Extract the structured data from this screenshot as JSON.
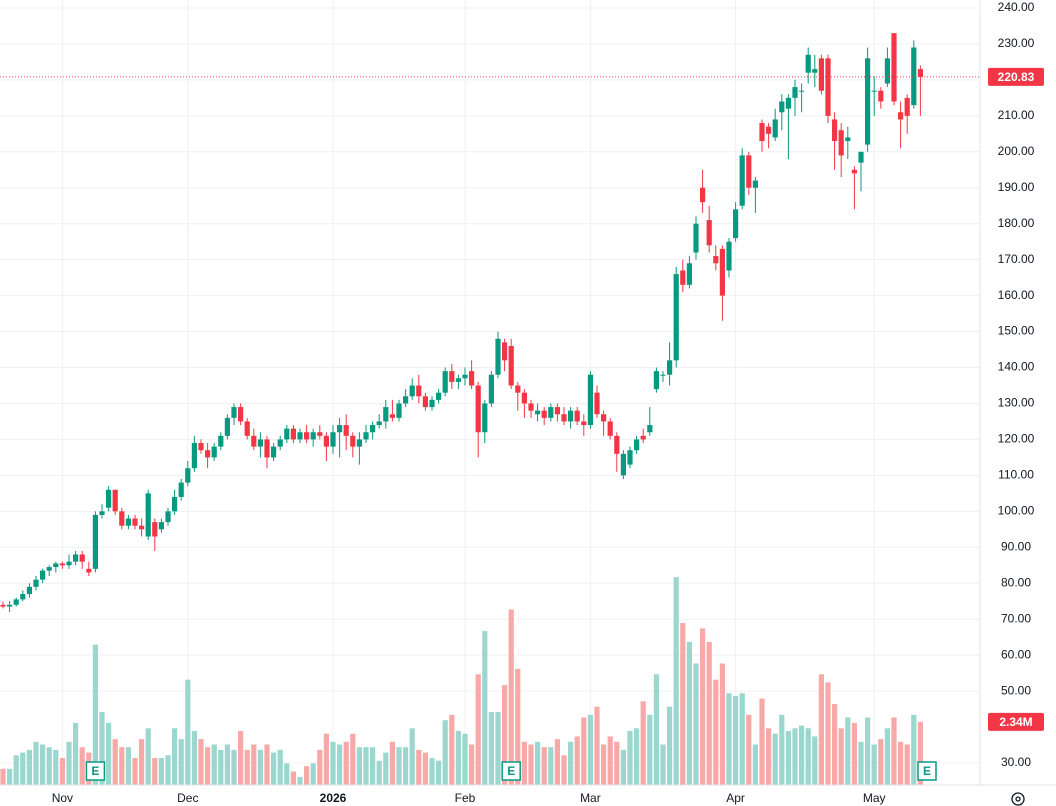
{
  "chart_data": {
    "type": "candlestick",
    "colors": {
      "up": "#089981",
      "down": "#f23645",
      "up_volume": "#9bd6cf",
      "down_volume": "#f7a9a7"
    },
    "candles": [
      [
        74,
        75,
        73,
        73.5,
        0.6
      ],
      [
        73.5,
        75,
        72,
        74,
        0.6
      ],
      [
        74,
        76,
        73.5,
        75.5,
        1.1
      ],
      [
        75.5,
        78,
        75,
        77,
        1.2
      ],
      [
        77,
        80,
        76,
        79,
        1.3
      ],
      [
        79,
        82,
        78,
        81,
        1.6
      ],
      [
        81,
        84,
        80,
        83.5,
        1.5
      ],
      [
        83.5,
        85,
        82,
        84.5,
        1.4
      ],
      [
        84.5,
        86,
        83,
        85.5,
        1.3
      ],
      [
        85.5,
        86,
        84,
        85,
        1.0
      ],
      [
        85,
        88,
        84,
        86,
        1.6
      ],
      [
        86,
        89,
        85,
        88,
        2.3
      ],
      [
        88,
        89,
        84,
        86,
        1.4
      ],
      [
        84,
        86,
        82,
        83,
        1.2
      ],
      [
        84,
        100,
        83,
        99,
        5.2
      ],
      [
        99,
        102,
        98,
        100,
        2.7
      ],
      [
        101,
        107,
        100,
        106,
        2.3
      ],
      [
        106,
        106,
        99,
        100,
        1.7
      ],
      [
        100,
        101,
        95,
        96,
        1.4
      ],
      [
        96,
        99,
        95,
        98,
        1.4
      ],
      [
        98,
        99,
        95,
        96,
        1.0
      ],
      [
        96,
        98,
        93,
        95,
        1.7
      ],
      [
        93,
        106,
        92,
        105,
        2.1
      ],
      [
        97,
        98,
        89,
        93,
        1.0
      ],
      [
        95,
        98,
        94,
        97,
        1.0
      ],
      [
        97,
        101,
        96,
        100,
        1.1
      ],
      [
        100,
        106,
        99,
        104,
        2.1
      ],
      [
        104,
        109,
        103,
        108,
        1.7
      ],
      [
        108,
        114,
        107,
        112,
        3.9
      ],
      [
        112,
        121,
        111,
        119,
        2.0
      ],
      [
        119,
        120,
        116,
        117,
        1.7
      ],
      [
        117,
        119,
        112,
        115,
        1.4
      ],
      [
        115,
        119,
        114,
        118,
        1.5
      ],
      [
        118,
        122,
        117,
        121,
        1.3
      ],
      [
        121,
        127,
        120,
        126,
        1.5
      ],
      [
        126,
        130,
        124,
        129,
        1.3
      ],
      [
        129,
        130,
        124,
        125,
        2.0
      ],
      [
        125,
        126,
        120,
        121,
        1.3
      ],
      [
        121,
        123,
        117,
        118,
        1.5
      ],
      [
        118,
        122,
        115,
        120,
        1.3
      ],
      [
        120,
        121,
        112,
        115,
        1.5
      ],
      [
        115,
        119,
        114,
        118,
        1.2
      ],
      [
        118,
        121,
        117,
        120,
        1.3
      ],
      [
        120,
        124,
        119,
        123,
        0.8
      ],
      [
        123,
        124,
        119,
        120,
        0.5
      ],
      [
        120,
        123,
        119,
        122,
        0.3
      ],
      [
        122,
        124,
        119,
        120,
        0.7
      ],
      [
        120,
        123,
        118,
        122,
        0.8
      ],
      [
        122,
        124,
        120,
        121,
        1.3
      ],
      [
        121,
        122,
        114,
        118,
        1.9
      ],
      [
        118,
        124,
        116,
        122,
        1.6
      ],
      [
        122,
        126,
        115,
        124,
        1.5
      ],
      [
        124,
        127,
        117,
        121,
        1.6
      ],
      [
        121,
        122,
        115,
        118,
        1.9
      ],
      [
        118,
        122,
        113,
        120,
        1.4
      ],
      [
        120,
        124,
        119,
        122,
        1.4
      ],
      [
        122,
        125,
        120,
        124,
        1.4
      ],
      [
        124,
        127,
        123,
        125,
        0.9
      ],
      [
        125,
        131,
        123,
        129,
        1.2
      ],
      [
        127,
        131,
        125,
        126,
        1.6
      ],
      [
        126,
        131,
        125,
        130,
        1.4
      ],
      [
        130,
        134,
        129,
        132,
        1.4
      ],
      [
        132,
        137,
        131,
        135,
        2.1
      ],
      [
        135,
        138,
        130,
        132,
        1.3
      ],
      [
        132,
        133,
        128,
        129,
        1.2
      ],
      [
        129,
        132,
        128,
        131,
        1.0
      ],
      [
        131,
        134,
        130,
        133,
        0.9
      ],
      [
        133,
        140,
        132,
        139,
        2.4
      ],
      [
        139,
        141,
        134,
        136,
        2.6
      ],
      [
        136,
        138,
        134,
        137,
        2.0
      ],
      [
        137,
        140,
        135,
        138,
        1.9
      ],
      [
        139,
        142,
        134,
        135,
        1.5
      ],
      [
        135,
        136,
        115,
        122,
        4.1
      ],
      [
        122,
        131,
        119,
        130,
        5.7
      ],
      [
        130,
        139,
        129,
        138,
        2.7
      ],
      [
        138,
        150,
        137,
        148,
        2.7
      ],
      [
        147,
        148,
        139,
        142,
        3.7
      ],
      [
        146,
        148,
        134,
        135,
        6.5
      ],
      [
        135,
        136,
        128,
        133,
        4.3
      ],
      [
        133,
        134,
        126,
        130,
        1.6
      ],
      [
        130,
        131,
        126,
        128,
        1.5
      ],
      [
        127,
        130,
        125,
        128,
        1.6
      ],
      [
        128,
        129,
        124,
        126,
        1.4
      ],
      [
        126,
        130,
        125,
        129,
        1.4
      ],
      [
        129,
        130,
        125,
        127,
        1.7
      ],
      [
        127,
        129,
        124,
        125,
        1.1
      ],
      [
        125,
        129,
        123,
        128,
        1.6
      ],
      [
        128,
        129,
        124,
        125,
        1.8
      ],
      [
        125,
        127,
        121,
        124,
        2.5
      ],
      [
        124,
        139,
        123,
        138,
        2.6
      ],
      [
        133,
        135,
        126,
        127,
        2.9
      ],
      [
        127,
        128,
        121,
        125,
        1.5
      ],
      [
        125,
        126,
        120,
        121,
        1.8
      ],
      [
        121,
        122,
        111,
        116,
        1.6
      ],
      [
        110,
        117,
        109,
        116,
        1.3
      ],
      [
        113,
        118,
        112,
        117,
        2.0
      ],
      [
        117,
        121,
        116,
        120,
        2.1
      ],
      [
        121,
        123,
        119,
        120,
        3.1
      ],
      [
        122,
        129,
        121,
        124,
        2.6
      ],
      [
        134,
        140,
        133,
        139,
        4.1
      ],
      [
        138,
        139,
        136,
        138,
        1.5
      ],
      [
        138,
        147,
        135,
        142,
        2.9
      ],
      [
        142,
        168,
        140,
        166,
        7.7
      ],
      [
        167,
        170,
        161,
        163,
        6.0
      ],
      [
        163,
        171,
        162,
        169,
        5.3
      ],
      [
        172,
        182,
        170,
        180,
        4.5
      ],
      [
        190,
        195,
        183,
        186,
        5.8
      ],
      [
        181,
        185,
        172,
        174,
        5.3
      ],
      [
        171,
        174,
        167,
        169,
        3.9
      ],
      [
        173,
        174,
        153,
        160,
        4.5
      ],
      [
        167,
        176,
        165,
        175,
        3.4
      ],
      [
        176,
        186,
        175,
        184,
        3.3
      ],
      [
        185,
        201,
        184,
        199,
        3.4
      ],
      [
        199,
        200,
        188,
        190,
        2.6
      ],
      [
        190,
        193,
        183,
        192,
        1.5
      ],
      [
        208,
        209,
        200,
        203,
        3.2
      ],
      [
        207,
        208,
        201,
        205,
        2.1
      ],
      [
        204,
        212,
        203,
        209,
        1.9
      ],
      [
        211,
        216,
        206,
        214,
        2.6
      ],
      [
        212,
        216,
        198,
        215,
        2.0
      ],
      [
        215,
        220,
        210,
        218,
        2.1
      ],
      [
        217,
        219,
        211,
        217,
        2.2
      ],
      [
        222,
        229,
        219,
        227,
        2.1
      ],
      [
        222,
        227,
        218,
        223,
        1.8
      ],
      [
        226,
        227,
        216,
        217,
        4.1
      ],
      [
        226,
        227,
        208,
        210,
        3.8
      ],
      [
        209,
        211,
        195,
        203,
        3.0
      ],
      [
        206,
        208,
        193,
        199,
        2.1
      ],
      [
        203,
        207,
        198,
        204,
        2.5
      ],
      [
        195,
        196,
        184,
        194,
        2.3
      ],
      [
        197,
        200,
        189,
        200,
        1.6
      ],
      [
        202,
        229,
        200,
        226,
        2.5
      ],
      [
        217,
        221,
        210,
        217,
        1.5
      ],
      [
        217,
        218,
        212,
        214,
        1.7
      ],
      [
        219,
        229,
        218,
        226,
        2.1
      ],
      [
        233,
        233,
        213,
        214,
        2.5
      ],
      [
        211,
        214,
        201,
        209,
        1.6
      ],
      [
        215,
        216,
        205,
        210,
        1.5
      ],
      [
        213,
        231,
        212,
        229,
        2.6
      ],
      [
        223,
        224,
        210,
        220.83,
        2.34
      ]
    ],
    "xticks": [
      {
        "value": 9,
        "label": "Nov"
      },
      {
        "value": 28,
        "label": "Dec"
      },
      {
        "value": 50,
        "label": "2026"
      },
      {
        "value": 70,
        "label": "Feb"
      },
      {
        "value": 89,
        "label": "Mar"
      },
      {
        "value": 111,
        "label": "Apr"
      },
      {
        "value": 132,
        "label": "May"
      }
    ],
    "ylim": [
      30,
      240
    ],
    "yticks": [
      {
        "value": 30,
        "label": "30.00"
      },
      {
        "value": 50,
        "label": "50.00"
      },
      {
        "value": 60,
        "label": "60.00"
      },
      {
        "value": 70,
        "label": "70.00"
      },
      {
        "value": 80,
        "label": "80.00"
      },
      {
        "value": 90,
        "label": "90.00"
      },
      {
        "value": 100,
        "label": "100.00"
      },
      {
        "value": 110,
        "label": "110.00"
      },
      {
        "value": 120,
        "label": "120.00"
      },
      {
        "value": 130,
        "label": "130.00"
      },
      {
        "value": 140,
        "label": "140.00"
      },
      {
        "value": 150,
        "label": "150.00"
      },
      {
        "value": 160,
        "label": "160.00"
      },
      {
        "value": 170,
        "label": "170.00"
      },
      {
        "value": 180,
        "label": "180.00"
      },
      {
        "value": 190,
        "label": "190.00"
      },
      {
        "value": 200,
        "label": "200.00"
      },
      {
        "value": 210,
        "label": "210.00"
      },
      {
        "value": 220,
        "label": "220.00"
      },
      {
        "value": 230,
        "label": "230.00"
      },
      {
        "value": 240,
        "label": "240.00"
      }
    ],
    "last_price": {
      "value": 220.83,
      "label": "220.83"
    },
    "last_volume": {
      "value": 2.34,
      "label": "2.34M"
    },
    "earnings": [
      {
        "index": 14,
        "label": "E"
      },
      {
        "index": 77,
        "label": "E"
      },
      {
        "index": 140,
        "label": "E"
      }
    ],
    "grid": true
  }
}
